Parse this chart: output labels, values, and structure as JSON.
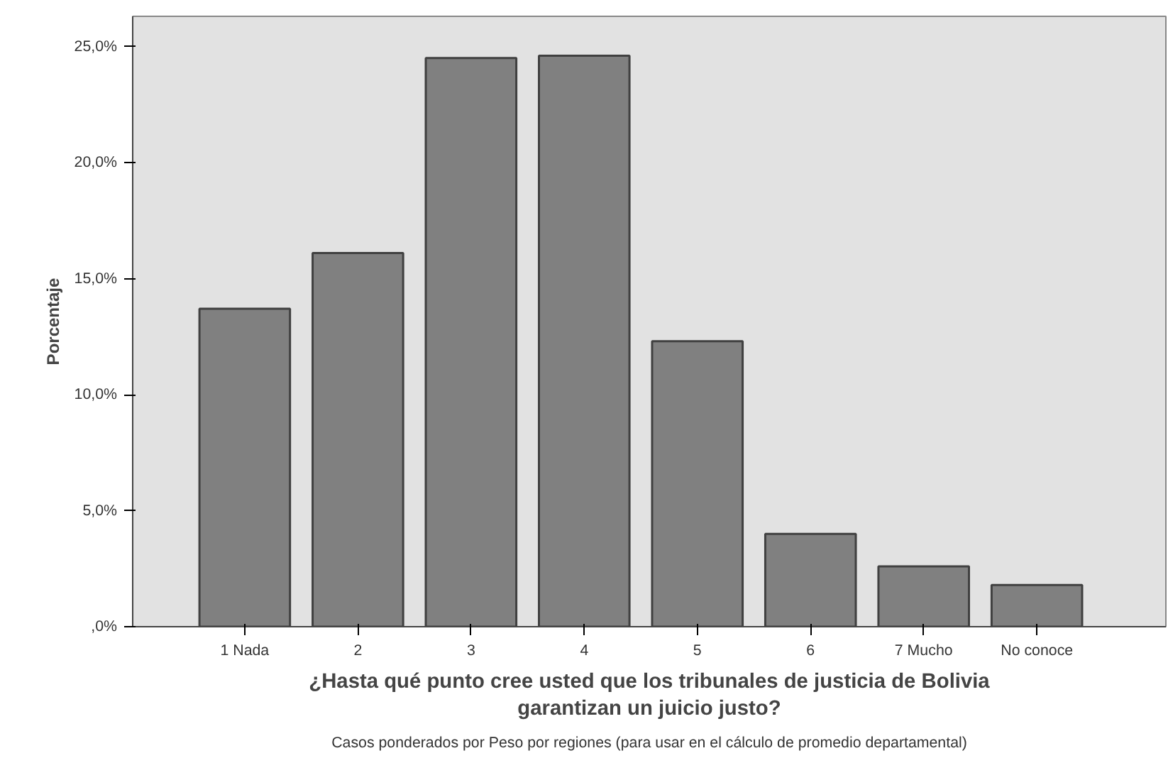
{
  "chart_data": {
    "type": "bar",
    "categories": [
      "1 Nada",
      "2",
      "3",
      "4",
      "5",
      "6",
      "7 Mucho",
      "No conoce"
    ],
    "values": [
      13.7,
      16.1,
      24.5,
      24.6,
      12.3,
      4.0,
      2.6,
      1.8
    ],
    "color": "#808080",
    "xlabel": "¿Hasta qué punto cree usted que los tribunales de justicia de Bolivia\ngarantizan un juicio justo?",
    "ylabel": "Porcentaje",
    "ylim": [
      0,
      26.3
    ],
    "yticks": [
      {
        "value": 0,
        "label": ",0%"
      },
      {
        "value": 5,
        "label": "5,0%"
      },
      {
        "value": 10,
        "label": "10,0%"
      },
      {
        "value": 15,
        "label": "15,0%"
      },
      {
        "value": 20,
        "label": "20,0%"
      },
      {
        "value": 25,
        "label": "25,0%"
      }
    ],
    "annotations": [
      "Casos ponderados por Peso por regiones (para usar en el cálculo de promedio departamental)"
    ],
    "grid": false
  }
}
